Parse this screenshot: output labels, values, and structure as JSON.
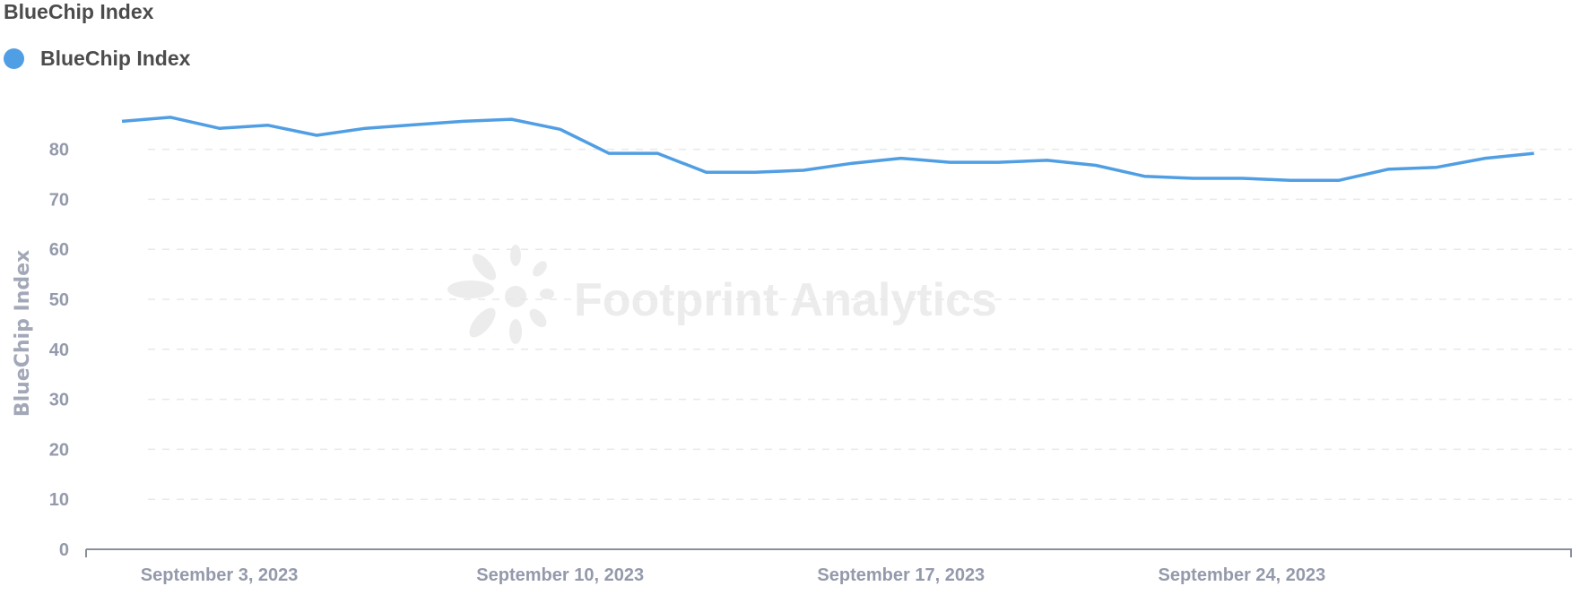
{
  "title": "BlueChip Index",
  "watermark": "Footprint Analytics",
  "chart_data": {
    "type": "line",
    "title": "BlueChip Index",
    "ylabel": "BlueChip Index",
    "xlabel": "",
    "legend_position": "top-left",
    "grid": true,
    "ylim": [
      0,
      90
    ],
    "yticks": [
      0,
      10,
      20,
      30,
      40,
      50,
      60,
      70,
      80
    ],
    "xtick_labels": [
      {
        "date": "2023-09-03",
        "label": "September 3, 2023"
      },
      {
        "date": "2023-09-10",
        "label": "September 10, 2023"
      },
      {
        "date": "2023-09-17",
        "label": "September 17, 2023"
      },
      {
        "date": "2023-09-24",
        "label": "September 24, 2023"
      }
    ],
    "x": [
      "2023-09-01",
      "2023-09-02",
      "2023-09-03",
      "2023-09-04",
      "2023-09-05",
      "2023-09-06",
      "2023-09-07",
      "2023-09-08",
      "2023-09-09",
      "2023-09-10",
      "2023-09-11",
      "2023-09-12",
      "2023-09-13",
      "2023-09-14",
      "2023-09-15",
      "2023-09-16",
      "2023-09-17",
      "2023-09-18",
      "2023-09-19",
      "2023-09-20",
      "2023-09-21",
      "2023-09-22",
      "2023-09-23",
      "2023-09-24",
      "2023-09-25",
      "2023-09-26",
      "2023-09-27",
      "2023-09-28",
      "2023-09-29",
      "2023-09-30"
    ],
    "series": [
      {
        "name": "BlueChip Index",
        "color": "#509ee3",
        "values": [
          85.6,
          86.4,
          84.2,
          84.8,
          82.8,
          84.2,
          84.9,
          85.6,
          86.0,
          84.0,
          79.2,
          79.2,
          75.4,
          75.4,
          75.8,
          77.2,
          78.2,
          77.4,
          77.4,
          77.8,
          76.8,
          74.6,
          74.2,
          74.2,
          73.8,
          73.8,
          76.0,
          76.4,
          78.2,
          79.2
        ]
      }
    ]
  }
}
